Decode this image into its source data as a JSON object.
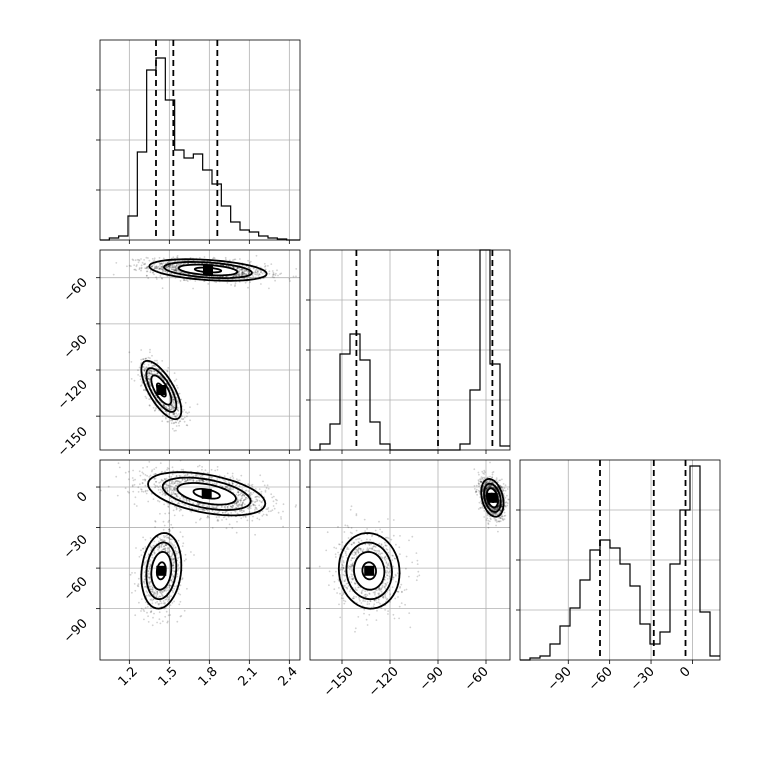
{
  "chart_data": [
    {
      "type": "histogram",
      "panel": "p1",
      "grid": true,
      "x_range": [
        0.98,
        2.48
      ],
      "y_range": [
        0,
        1
      ],
      "bin_edges": [
        0.98,
        1.05,
        1.12,
        1.19,
        1.26,
        1.33,
        1.4,
        1.47,
        1.54,
        1.61,
        1.68,
        1.75,
        1.82,
        1.89,
        1.96,
        2.03,
        2.1,
        2.17,
        2.24,
        2.31,
        2.38,
        2.45,
        2.48
      ],
      "counts": [
        0,
        0.01,
        0.02,
        0.12,
        0.44,
        0.85,
        0.91,
        0.7,
        0.45,
        0.41,
        0.43,
        0.35,
        0.28,
        0.17,
        0.09,
        0.05,
        0.04,
        0.02,
        0.01,
        0.005,
        0,
        0
      ],
      "quantiles": [
        1.4,
        1.53,
        1.86
      ]
    },
    {
      "type": "histogram",
      "panel": "p4",
      "grid": true,
      "x_range": [
        -170,
        -45
      ],
      "y_range": [
        0,
        1
      ],
      "bin_edges": [
        -170,
        -163.75,
        -157.5,
        -151.25,
        -145,
        -138.75,
        -132.5,
        -126.25,
        -120,
        -113.75,
        -107.5,
        -101.25,
        -95,
        -88.75,
        -82.5,
        -76.25,
        -70,
        -63.75,
        -57.5,
        -51.25,
        -45
      ],
      "counts": [
        0,
        0.03,
        0.13,
        0.48,
        0.58,
        0.45,
        0.14,
        0.03,
        0,
        0,
        0,
        0,
        0,
        0,
        0,
        0.03,
        0.3,
        1.0,
        0.43,
        0.02
      ],
      "quantiles": [
        -141,
        -90,
        -56
      ]
    },
    {
      "type": "histogram",
      "panel": "p6",
      "grid": true,
      "x_range": [
        -125,
        20
      ],
      "y_range": [
        0,
        1
      ],
      "bin_edges": [
        -125,
        -117.75,
        -110.5,
        -103.25,
        -96,
        -88.75,
        -81.5,
        -74.25,
        -67,
        -59.75,
        -52.5,
        -45.25,
        -38,
        -30.75,
        -23.5,
        -16.25,
        -9,
        -1.75,
        5.5,
        12.75,
        20
      ],
      "counts": [
        0,
        0.01,
        0.02,
        0.08,
        0.17,
        0.26,
        0.4,
        0.55,
        0.6,
        0.56,
        0.48,
        0.37,
        0.18,
        0.08,
        0.14,
        0.48,
        0.75,
        0.97,
        0.24,
        0.02
      ],
      "quantiles": [
        -67,
        -28,
        -5
      ]
    },
    {
      "type": "scatter-density",
      "panel": "p2",
      "grid": true,
      "x_range": [
        0.98,
        2.48
      ],
      "y_range": [
        -172,
        -42
      ],
      "clusters": [
        {
          "cx": 1.79,
          "cy": -55,
          "sx": 0.22,
          "sy": 3.5,
          "rho": -0.35,
          "n": 1500
        },
        {
          "cx": 1.44,
          "cy": -133,
          "sx": 0.075,
          "sy": 9.5,
          "rho": -0.7,
          "n": 850
        }
      ]
    },
    {
      "type": "scatter-density",
      "panel": "p3",
      "grid": true,
      "x_range": [
        0.98,
        2.48
      ],
      "y_range": [
        -128,
        20
      ],
      "clusters": [
        {
          "cx": 1.78,
          "cy": -5,
          "sx": 0.22,
          "sy": 8,
          "rho": -0.45,
          "n": 1500
        },
        {
          "cx": 1.44,
          "cy": -62,
          "sx": 0.075,
          "sy": 14,
          "rho": 0.15,
          "n": 850
        }
      ]
    },
    {
      "type": "scatter-density",
      "panel": "p5",
      "grid": true,
      "x_range": [
        -170,
        -45
      ],
      "y_range": [
        -128,
        20
      ],
      "clusters": [
        {
          "cx": -56,
          "cy": -8,
          "sx": 3.5,
          "sy": 7,
          "rho": -0.3,
          "n": 1500
        },
        {
          "cx": -133,
          "cy": -62,
          "sx": 9.5,
          "sy": 14,
          "rho": -0.05,
          "n": 850
        }
      ]
    }
  ],
  "axes": {
    "p2_y_ticks": [
      "−60",
      "−90",
      "−120",
      "−150"
    ],
    "p3_y_ticks": [
      "0",
      "−30",
      "−60",
      "−90"
    ],
    "p3_x_ticks": [
      "1.2",
      "1.5",
      "1.8",
      "2.1",
      "2.4"
    ],
    "p5_x_ticks": [
      "−150",
      "−120",
      "−90",
      "−60"
    ],
    "p6_x_ticks": [
      "−90",
      "−60",
      "−30",
      "0"
    ]
  }
}
